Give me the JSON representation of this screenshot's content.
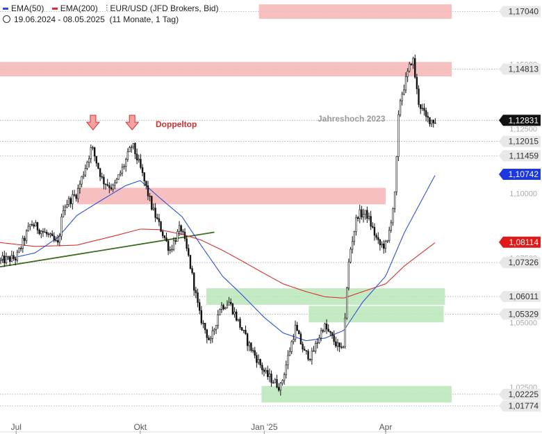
{
  "header": {
    "ema50_label": "EMA(50)",
    "ema200_label": "EMA(200)",
    "instrument": "EUR/USD (JFD Brokers, Bid)",
    "date_range": "19.06.2024 - 08.05.2025",
    "period_info": "(11 Monate, 1 Tag)"
  },
  "colors": {
    "ema50": "#2d4fd8",
    "ema200": "#d93030",
    "candle": "#111111",
    "resistance_zone": "#f5b5b5",
    "support_zone": "#b8e6b8",
    "trendline": "#3d6a1e",
    "last_price_bg": "#111111",
    "ema50_tag_bg": "#1a37e0",
    "ema200_tag_bg": "#e01818",
    "level_tag_bg": "#e8e8e8",
    "annotation": "#d03030",
    "arrow_fill": "#f6a0a0",
    "arrow_stroke": "#d03030"
  },
  "chart_data": {
    "type": "candlestick",
    "ylim": [
      1.0155,
      1.173
    ],
    "x_tick_labels": [
      "Jul",
      "Okt",
      "Jan '25",
      "Apr"
    ],
    "y_tick_labels": [
      "1,15000",
      "1,12500",
      "1,10000",
      "1,07500",
      "1,05000",
      "1,02500"
    ],
    "last_price": "1,12831",
    "ema50_value": "1,10742",
    "ema200_value": "1,08114",
    "level_labels": [
      "1,17040",
      "1,14813",
      "1,12015",
      "1,11459",
      "1,07326",
      "1,06011",
      "1,05329",
      "1,02225",
      "1,01774"
    ],
    "annotations": [
      "Doppeltop",
      "Jahreshoch 2023"
    ],
    "close_path": [
      [
        "2024-06-19",
        1.074
      ],
      [
        "2024-07-01",
        1.075
      ],
      [
        "2024-07-12",
        1.0885
      ],
      [
        "2024-07-24",
        1.084
      ],
      [
        "2024-08-01",
        1.08
      ],
      [
        "2024-08-05",
        1.095
      ],
      [
        "2024-08-15",
        1.1
      ],
      [
        "2024-08-26",
        1.118
      ],
      [
        "2024-09-03",
        1.105
      ],
      [
        "2024-09-11",
        1.102
      ],
      [
        "2024-09-19",
        1.111
      ],
      [
        "2024-09-25",
        1.119
      ],
      [
        "2024-10-01",
        1.11
      ],
      [
        "2024-10-10",
        1.094
      ],
      [
        "2024-10-23",
        1.078
      ],
      [
        "2024-10-31",
        1.087
      ],
      [
        "2024-11-06",
        1.075
      ],
      [
        "2024-11-14",
        1.053
      ],
      [
        "2024-11-22",
        1.042
      ],
      [
        "2024-11-29",
        1.056
      ],
      [
        "2024-12-06",
        1.058
      ],
      [
        "2024-12-20",
        1.042
      ],
      [
        "2025-01-02",
        1.03
      ],
      [
        "2025-01-13",
        1.025
      ],
      [
        "2025-01-24",
        1.048
      ],
      [
        "2025-01-31",
        1.038
      ],
      [
        "2025-02-05",
        1.037
      ],
      [
        "2025-02-14",
        1.049
      ],
      [
        "2025-02-28",
        1.038
      ],
      [
        "2025-03-05",
        1.076
      ],
      [
        "2025-03-11",
        1.092
      ],
      [
        "2025-03-18",
        1.092
      ],
      [
        "2025-03-27",
        1.08
      ],
      [
        "2025-04-02",
        1.08
      ],
      [
        "2025-04-08",
        1.1
      ],
      [
        "2025-04-11",
        1.135
      ],
      [
        "2025-04-21",
        1.153
      ],
      [
        "2025-04-25",
        1.136
      ],
      [
        "2025-05-01",
        1.129
      ],
      [
        "2025-05-08",
        1.128
      ]
    ],
    "ema50_path": [
      [
        "2024-06-19",
        1.074
      ],
      [
        "2024-07-15",
        1.077
      ],
      [
        "2024-08-01",
        1.083
      ],
      [
        "2024-08-15",
        1.0915
      ],
      [
        "2024-09-01",
        1.097
      ],
      [
        "2024-09-20",
        1.103
      ],
      [
        "2024-10-01",
        1.105
      ],
      [
        "2024-10-15",
        1.0985
      ],
      [
        "2024-11-01",
        1.091
      ],
      [
        "2024-11-15",
        1.08
      ],
      [
        "2024-12-01",
        1.068
      ],
      [
        "2024-12-15",
        1.061
      ],
      [
        "2025-01-01",
        1.052
      ],
      [
        "2025-01-15",
        1.046
      ],
      [
        "2025-02-01",
        1.043
      ],
      [
        "2025-02-15",
        1.044
      ],
      [
        "2025-03-01",
        1.047
      ],
      [
        "2025-03-15",
        1.058
      ],
      [
        "2025-04-01",
        1.068
      ],
      [
        "2025-04-15",
        1.085
      ],
      [
        "2025-05-08",
        1.1074
      ]
    ],
    "ema200_path": [
      [
        "2024-06-19",
        1.081
      ],
      [
        "2024-07-15",
        1.0795
      ],
      [
        "2024-08-15",
        1.08
      ],
      [
        "2024-09-15",
        1.084
      ],
      [
        "2024-10-01",
        1.0862
      ],
      [
        "2024-10-15",
        1.086
      ],
      [
        "2024-11-01",
        1.0842
      ],
      [
        "2024-11-15",
        1.082
      ],
      [
        "2024-12-01",
        1.078
      ],
      [
        "2024-12-15",
        1.074
      ],
      [
        "2025-01-01",
        1.069
      ],
      [
        "2025-01-15",
        1.065
      ],
      [
        "2025-02-01",
        1.062
      ],
      [
        "2025-02-15",
        1.06
      ],
      [
        "2025-03-01",
        1.0595
      ],
      [
        "2025-03-15",
        1.062
      ],
      [
        "2025-04-01",
        1.065
      ],
      [
        "2025-04-15",
        1.072
      ],
      [
        "2025-05-08",
        1.0811
      ]
    ],
    "zones": [
      {
        "kind": "resistance",
        "start": "2024-08-15",
        "end": "2025-04-01",
        "y": 1.099,
        "height": 0.0008
      },
      {
        "kind": "support",
        "start": "2024-11-19",
        "end": "2025-05-15",
        "y": 1.0601,
        "height": 0.0008
      },
      {
        "kind": "support",
        "start": "2025-02-03",
        "end": "2025-05-14",
        "y": 1.0533,
        "height": 0.0008
      },
      {
        "kind": "support",
        "start": "2024-12-30",
        "end": "2025-05-20",
        "y": 1.0223,
        "height": 0.0008
      },
      {
        "kind": "resistance",
        "start": "2024-06-19",
        "end": "2025-05-20",
        "y": 1.1481,
        "height": 0.0007
      },
      {
        "kind": "resistance",
        "start": "2024-12-28",
        "end": "2025-05-20",
        "y": 1.1704,
        "height": 0.0007
      }
    ],
    "trendline": [
      [
        "2024-06-19",
        1.0716
      ],
      [
        "2024-11-25",
        1.085
      ]
    ],
    "arrow_dates": [
      "2024-08-27",
      "2024-09-25"
    ]
  }
}
